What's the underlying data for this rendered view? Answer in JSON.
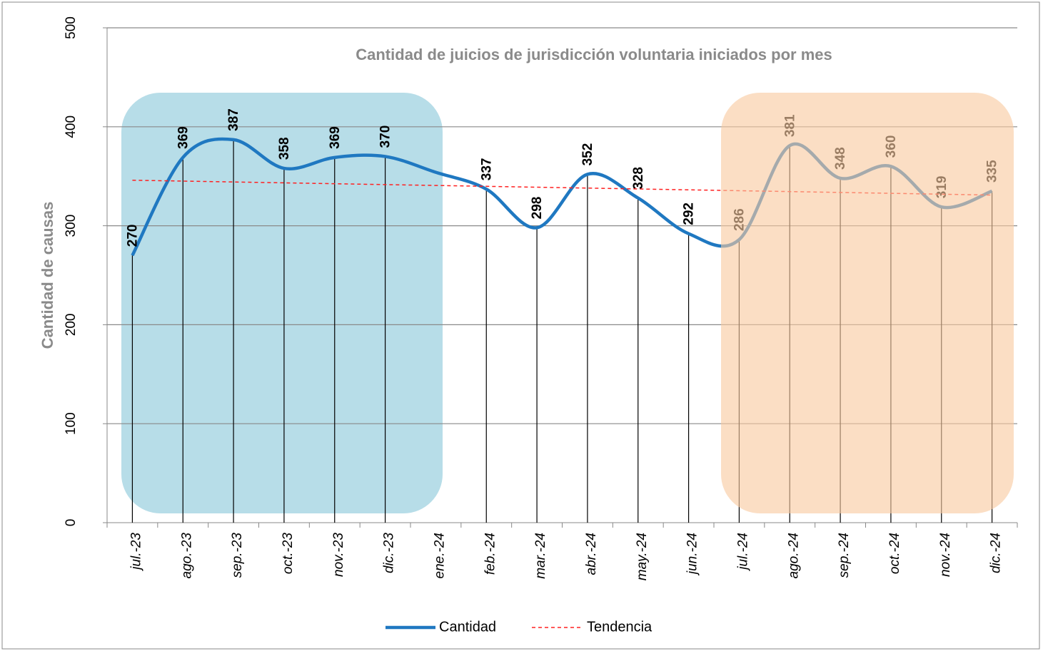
{
  "chart_data": {
    "type": "line",
    "title": "Cantidad de juicios de jurisdicción voluntaria iniciados por mes",
    "y_label": "Cantidad de causas",
    "categories": [
      "jul.-23",
      "ago.-23",
      "sep.-23",
      "oct.-23",
      "nov.-23",
      "dic.-23",
      "ene.-24",
      "feb.-24",
      "mar.-24",
      "abr.-24",
      "may.-24",
      "jun.-24",
      "jul.-24",
      "ago.-24",
      "sep.-24",
      "oct.-24",
      "nov.-24",
      "dic.-24"
    ],
    "series": [
      {
        "name": "Cantidad",
        "color": "#1f78c1",
        "values": [
          270,
          369,
          387,
          358,
          369,
          370,
          354,
          337,
          298,
          352,
          328,
          292,
          286,
          381,
          348,
          360,
          319,
          335
        ],
        "value_labels": [
          "270",
          "369",
          "387",
          "358",
          "369",
          "370",
          null,
          "337",
          "298",
          "352",
          "328",
          "292",
          "286",
          "381",
          "348",
          "360",
          "319",
          "335"
        ]
      }
    ],
    "trend": {
      "name": "Tendencia",
      "color": "#ff2020",
      "values": [
        346,
        331
      ]
    },
    "ylim": [
      0,
      500
    ],
    "yticks": [
      0,
      100,
      200,
      300,
      400,
      500
    ],
    "grid": true
  }
}
